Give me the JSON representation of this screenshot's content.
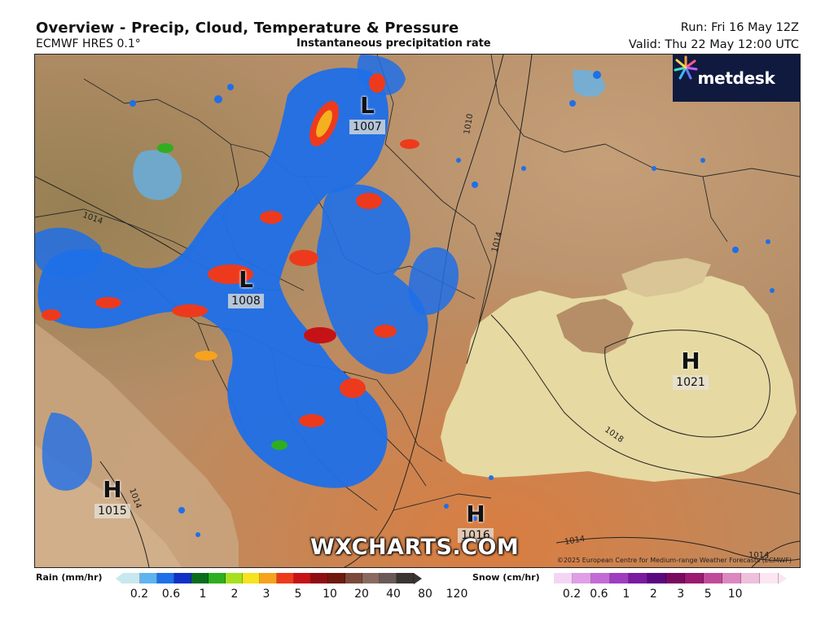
{
  "header": {
    "title": "Overview - Precip, Cloud, Temperature & Pressure",
    "model": "ECMWF HRES 0.1°",
    "subtitle": "Instantaneous precipitation rate",
    "run": "Run: Fri 16 May 12Z",
    "valid": "Valid: Thu 22 May 12:00 UTC"
  },
  "brand": {
    "name": "metdesk",
    "icon": "metdesk-flower-icon",
    "bg": "#101a3f"
  },
  "pressure_centers": [
    {
      "symbol": "L",
      "value": "1007"
    },
    {
      "symbol": "L",
      "value": "1008"
    },
    {
      "symbol": "H",
      "value": "1021"
    },
    {
      "symbol": "H",
      "value": "1015"
    },
    {
      "symbol": "H",
      "value": "1016"
    }
  ],
  "isobar_labels": [
    "1010",
    "1014",
    "1014",
    "1014",
    "1018",
    "1014",
    "1014"
  ],
  "watermark": "WXCHARTS.COM",
  "copyright": "©2025 European Centre for Medium-range Weather Forecasts (ECMWF)",
  "legend": {
    "rain": {
      "label": "Rain (mm/hr)",
      "colors": [
        "#c8e8ef",
        "#5fb4f0",
        "#1f6fe8",
        "#1030c8",
        "#0a6d1e",
        "#2fae1f",
        "#a6e01e",
        "#f7e21f",
        "#f7a21f",
        "#ee3a1c",
        "#c61216",
        "#8e0e12",
        "#6e1a10",
        "#7a4a3a",
        "#8a6a60",
        "#6a5a58",
        "#3a3434"
      ],
      "ticks": [
        "0.2",
        "0.6",
        "1",
        "2",
        "3",
        "5",
        "10",
        "20",
        "40",
        "80",
        "120"
      ]
    },
    "snow": {
      "label": "Snow (cm/hr)",
      "colors": [
        "#f4d6f4",
        "#e09ee6",
        "#c46ad6",
        "#a03cc0",
        "#7a1aa0",
        "#5a0a80",
        "#7a0a60",
        "#9a1a70",
        "#c04a9a",
        "#dc88c0",
        "#eec0dc",
        "#fbe6f2"
      ],
      "ticks": [
        "0.2",
        "0.6",
        "1",
        "2",
        "3",
        "5",
        "10"
      ]
    }
  },
  "colors": {
    "sea": "#e6d9a2",
    "land": "#b58e68",
    "rain_blue": "#1f6fe8",
    "rain_red": "#ee3a1c"
  }
}
